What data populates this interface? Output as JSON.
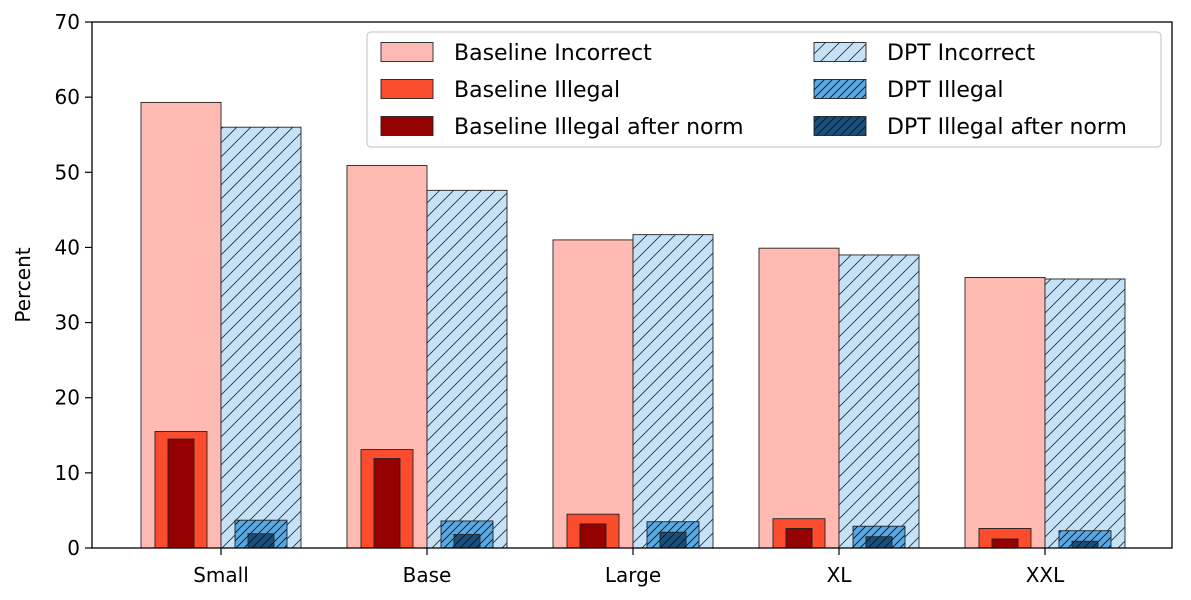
{
  "chart_data": {
    "type": "bar",
    "title": "",
    "xlabel": "",
    "ylabel": "Percent",
    "ylim": [
      0,
      70
    ],
    "yticks": [
      0,
      10,
      20,
      30,
      40,
      50,
      60,
      70
    ],
    "categories": [
      "Small",
      "Base",
      "Large",
      "XL",
      "XXL"
    ],
    "grid": false,
    "legend_position": "top-right",
    "series": [
      {
        "name": "Baseline Incorrect",
        "values": [
          59.3,
          50.9,
          41.0,
          39.9,
          36.0
        ],
        "color": "#ffbbb3",
        "hatch": "none"
      },
      {
        "name": "Baseline Illegal",
        "values": [
          15.5,
          13.1,
          4.5,
          3.9,
          2.6
        ],
        "color": "#fb4d2d",
        "hatch": "none"
      },
      {
        "name": "Baseline Illegal after norm",
        "values": [
          14.5,
          11.9,
          3.2,
          2.6,
          1.2
        ],
        "color": "#950000",
        "hatch": "none"
      },
      {
        "name": "DPT Incorrect",
        "values": [
          56.0,
          47.6,
          41.7,
          39.0,
          35.8
        ],
        "color": "#c6e2f8",
        "hatch": "light-diagonal"
      },
      {
        "name": "DPT Illegal",
        "values": [
          3.7,
          3.6,
          3.5,
          2.9,
          2.3
        ],
        "color": "#57a8e3",
        "hatch": "dense-diagonal"
      },
      {
        "name": "DPT Illegal after norm",
        "values": [
          1.9,
          1.8,
          2.1,
          1.5,
          0.9
        ],
        "color": "#1a4f7c",
        "hatch": "dense-diagonal"
      }
    ]
  }
}
